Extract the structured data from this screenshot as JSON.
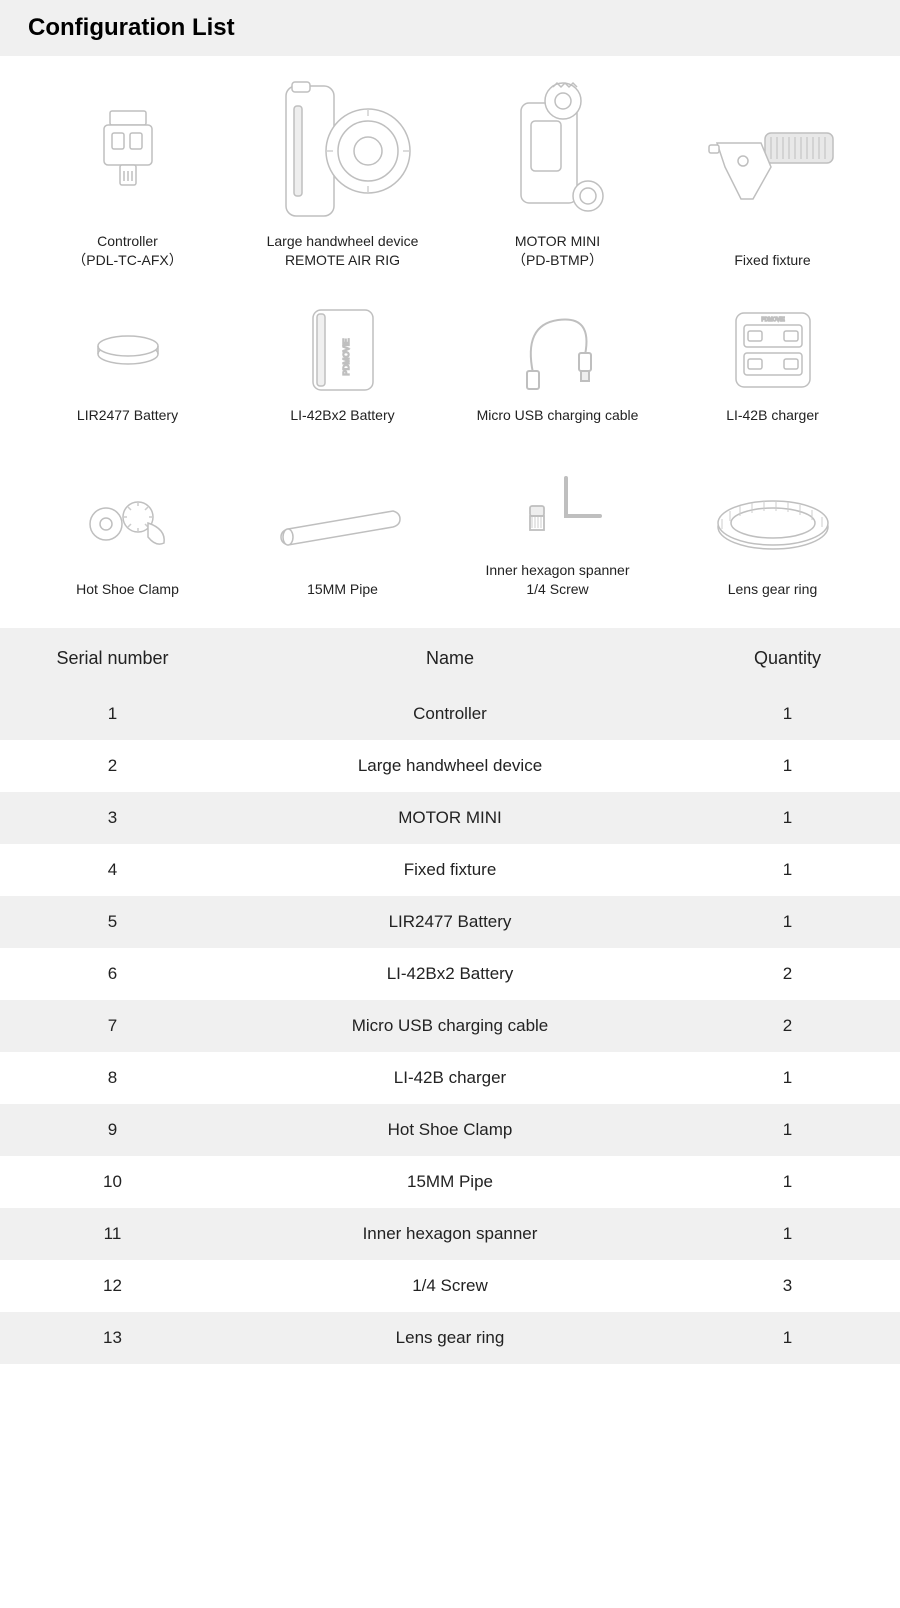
{
  "title": "Configuration List",
  "colors": {
    "header_bg": "#f0f0f0",
    "row_alt_bg": "#f0f0f0",
    "text": "#000000",
    "label_text": "#222222",
    "icon_stroke": "#bfbfbf",
    "icon_fill": "#ffffff"
  },
  "grid_items": [
    {
      "label": "Controller\n（PDL-TC-AFX）",
      "icon": "controller"
    },
    {
      "label": "Large handwheel device\nREMOTE AIR RIG",
      "icon": "handwheel"
    },
    {
      "label": "MOTOR MINI\n（PD-BTMP）",
      "icon": "motor"
    },
    {
      "label": "Fixed fixture",
      "icon": "fixture"
    },
    {
      "label": "LIR2477 Battery",
      "icon": "coin-battery"
    },
    {
      "label": "LI-42Bx2 Battery",
      "icon": "battery"
    },
    {
      "label": "Micro USB charging cable",
      "icon": "usb-cable"
    },
    {
      "label": "LI-42B charger",
      "icon": "charger"
    },
    {
      "label": "Hot Shoe Clamp",
      "icon": "clamp"
    },
    {
      "label": "15MM Pipe",
      "icon": "pipe"
    },
    {
      "label": "Inner hexagon spanner\n1/4 Screw",
      "icon": "hex-spanner"
    },
    {
      "label": "Lens gear ring",
      "icon": "gear-ring"
    }
  ],
  "table": {
    "columns": [
      "Serial number",
      "Name",
      "Quantity"
    ],
    "rows": [
      [
        "1",
        "Controller",
        "1"
      ],
      [
        "2",
        "Large handwheel device",
        "1"
      ],
      [
        "3",
        "MOTOR MINI",
        "1"
      ],
      [
        "4",
        "Fixed fixture",
        "1"
      ],
      [
        "5",
        "LIR2477 Battery",
        "1"
      ],
      [
        "6",
        "LI-42Bx2 Battery",
        "2"
      ],
      [
        "7",
        "Micro USB charging cable",
        "2"
      ],
      [
        "8",
        "LI-42B charger",
        "1"
      ],
      [
        "9",
        "Hot Shoe Clamp",
        "1"
      ],
      [
        "10",
        "15MM Pipe",
        "1"
      ],
      [
        "11",
        "Inner hexagon spanner",
        "1"
      ],
      [
        "12",
        "1/4 Screw",
        "3"
      ],
      [
        "13",
        "Lens gear ring",
        "1"
      ]
    ]
  }
}
